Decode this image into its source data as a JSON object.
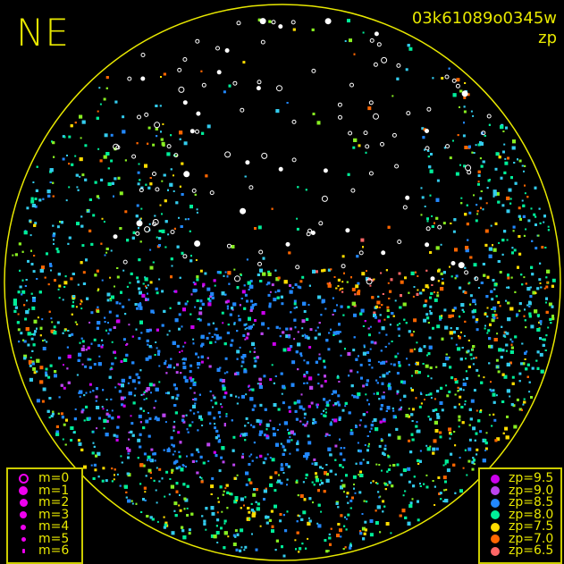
{
  "title": "NE",
  "frame_name": "03k61089o0345w",
  "color_key": "zp",
  "chart_data": {
    "type": "scatter",
    "title": "NE",
    "subtitle": "03k61089o0345w",
    "projection": "all-sky circular",
    "color_by": "zp",
    "size_by": "m",
    "boundary_color": "#e8e800",
    "size_legend": [
      {
        "label": "m=0",
        "hollow": true
      },
      {
        "label": "m=1"
      },
      {
        "label": "m=2"
      },
      {
        "label": "m=3"
      },
      {
        "label": "m=4"
      },
      {
        "label": "m=5"
      },
      {
        "label": "m=6"
      }
    ],
    "color_legend": [
      {
        "label": "zp=9.5",
        "color": "#cc00ee"
      },
      {
        "label": "zp=9.0",
        "color": "#bb44ee"
      },
      {
        "label": "zp=8.5",
        "color": "#2288ff"
      },
      {
        "label": "zp=8.0",
        "color": "#00ee99"
      },
      {
        "label": "zp=7.5",
        "color": "#ffdd00"
      },
      {
        "label": "zp=7.0",
        "color": "#ff6600"
      },
      {
        "label": "zp=6.5",
        "color": "#ff6666"
      }
    ],
    "no_zp_marker_color": "#ffffff"
  }
}
